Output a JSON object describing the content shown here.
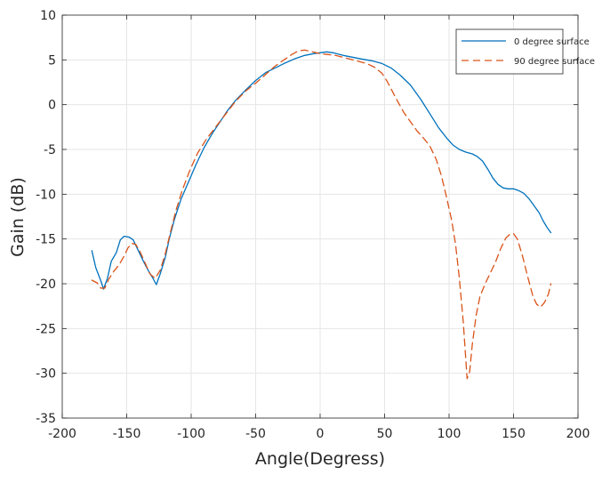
{
  "chart_data": {
    "type": "line",
    "title": "",
    "xlabel": "Angle(Degress)",
    "ylabel": "Gain (dB)",
    "xlim": [
      -200,
      200
    ],
    "ylim": [
      -35,
      10
    ],
    "xticks": [
      -200,
      -150,
      -100,
      -50,
      0,
      50,
      100,
      150,
      200
    ],
    "yticks": [
      10,
      5,
      0,
      -5,
      -10,
      -15,
      -20,
      -25,
      -30,
      -35
    ],
    "grid": true,
    "legend_position": "top-right",
    "series": [
      {
        "name": "0 degree surface",
        "color": "#0072BD",
        "dash": "solid",
        "points": [
          [
            -177,
            -16.3
          ],
          [
            -174,
            -18.2
          ],
          [
            -170,
            -19.7
          ],
          [
            -168,
            -20.6
          ],
          [
            -165,
            -19.4
          ],
          [
            -162,
            -17.5
          ],
          [
            -158,
            -16.5
          ],
          [
            -155,
            -15.1
          ],
          [
            -152,
            -14.7
          ],
          [
            -148,
            -14.8
          ],
          [
            -145,
            -15.1
          ],
          [
            -141,
            -16.3
          ],
          [
            -137,
            -17.5
          ],
          [
            -133,
            -18.6
          ],
          [
            -130,
            -19.3
          ],
          [
            -127,
            -20.1
          ],
          [
            -124,
            -18.9
          ],
          [
            -120,
            -17.0
          ],
          [
            -117,
            -15.0
          ],
          [
            -113,
            -12.8
          ],
          [
            -108,
            -10.6
          ],
          [
            -102,
            -8.6
          ],
          [
            -96,
            -6.6
          ],
          [
            -90,
            -4.8
          ],
          [
            -84,
            -3.3
          ],
          [
            -78,
            -2.0
          ],
          [
            -72,
            -0.7
          ],
          [
            -66,
            0.4
          ],
          [
            -58,
            1.6
          ],
          [
            -50,
            2.7
          ],
          [
            -42,
            3.6
          ],
          [
            -35,
            4.1
          ],
          [
            -28,
            4.6
          ],
          [
            -20,
            5.1
          ],
          [
            -12,
            5.5
          ],
          [
            -5,
            5.7
          ],
          [
            0,
            5.8
          ],
          [
            5,
            5.9
          ],
          [
            10,
            5.8
          ],
          [
            18,
            5.5
          ],
          [
            25,
            5.3
          ],
          [
            32,
            5.1
          ],
          [
            40,
            4.9
          ],
          [
            48,
            4.6
          ],
          [
            55,
            4.1
          ],
          [
            62,
            3.3
          ],
          [
            70,
            2.2
          ],
          [
            78,
            0.6
          ],
          [
            85,
            -1.0
          ],
          [
            92,
            -2.6
          ],
          [
            98,
            -3.7
          ],
          [
            103,
            -4.5
          ],
          [
            108,
            -5.0
          ],
          [
            113,
            -5.3
          ],
          [
            118,
            -5.5
          ],
          [
            122,
            -5.8
          ],
          [
            126,
            -6.3
          ],
          [
            130,
            -7.2
          ],
          [
            134,
            -8.2
          ],
          [
            138,
            -8.9
          ],
          [
            142,
            -9.3
          ],
          [
            146,
            -9.4
          ],
          [
            150,
            -9.4
          ],
          [
            154,
            -9.6
          ],
          [
            158,
            -9.9
          ],
          [
            162,
            -10.5
          ],
          [
            166,
            -11.3
          ],
          [
            170,
            -12.1
          ],
          [
            173,
            -13.0
          ],
          [
            176,
            -13.7
          ],
          [
            179,
            -14.3
          ]
        ]
      },
      {
        "name": "90 degree surface",
        "color": "#D95319",
        "dash": "dashed",
        "points": [
          [
            -177,
            -19.6
          ],
          [
            -173,
            -19.9
          ],
          [
            -170,
            -20.5
          ],
          [
            -167,
            -20.5
          ],
          [
            -164,
            -19.5
          ],
          [
            -160,
            -18.6
          ],
          [
            -156,
            -17.9
          ],
          [
            -152,
            -16.9
          ],
          [
            -149,
            -16.0
          ],
          [
            -146,
            -15.5
          ],
          [
            -143,
            -15.6
          ],
          [
            -140,
            -16.3
          ],
          [
            -136,
            -17.6
          ],
          [
            -132,
            -18.9
          ],
          [
            -128,
            -19.4
          ],
          [
            -124,
            -18.5
          ],
          [
            -120,
            -16.6
          ],
          [
            -116,
            -14.2
          ],
          [
            -112,
            -11.9
          ],
          [
            -107,
            -9.6
          ],
          [
            -101,
            -7.3
          ],
          [
            -95,
            -5.4
          ],
          [
            -88,
            -3.8
          ],
          [
            -81,
            -2.5
          ],
          [
            -74,
            -1.2
          ],
          [
            -66,
            0.3
          ],
          [
            -58,
            1.5
          ],
          [
            -50,
            2.4
          ],
          [
            -42,
            3.4
          ],
          [
            -35,
            4.3
          ],
          [
            -28,
            5.0
          ],
          [
            -22,
            5.6
          ],
          [
            -17,
            6.0
          ],
          [
            -12,
            6.1
          ],
          [
            -6,
            5.9
          ],
          [
            0,
            5.7
          ],
          [
            6,
            5.6
          ],
          [
            12,
            5.5
          ],
          [
            20,
            5.2
          ],
          [
            28,
            4.9
          ],
          [
            36,
            4.6
          ],
          [
            42,
            4.2
          ],
          [
            48,
            3.5
          ],
          [
            52,
            2.6
          ],
          [
            56,
            1.5
          ],
          [
            60,
            0.4
          ],
          [
            65,
            -0.9
          ],
          [
            70,
            -1.9
          ],
          [
            75,
            -2.9
          ],
          [
            80,
            -3.7
          ],
          [
            85,
            -4.6
          ],
          [
            90,
            -6.1
          ],
          [
            94,
            -7.9
          ],
          [
            98,
            -10.3
          ],
          [
            102,
            -12.9
          ],
          [
            105,
            -15.6
          ],
          [
            108,
            -19.4
          ],
          [
            111,
            -24.3
          ],
          [
            114,
            -30.6
          ],
          [
            116,
            -29.8
          ],
          [
            118,
            -26.8
          ],
          [
            121,
            -23.5
          ],
          [
            124,
            -21.4
          ],
          [
            128,
            -20.0
          ],
          [
            132,
            -18.8
          ],
          [
            136,
            -17.6
          ],
          [
            140,
            -16.1
          ],
          [
            144,
            -14.9
          ],
          [
            147,
            -14.5
          ],
          [
            150,
            -14.4
          ],
          [
            153,
            -15.0
          ],
          [
            157,
            -16.9
          ],
          [
            161,
            -19.2
          ],
          [
            165,
            -21.4
          ],
          [
            168,
            -22.3
          ],
          [
            171,
            -22.6
          ],
          [
            174,
            -22.1
          ],
          [
            177,
            -21.2
          ],
          [
            179,
            -20.0
          ]
        ]
      }
    ]
  }
}
